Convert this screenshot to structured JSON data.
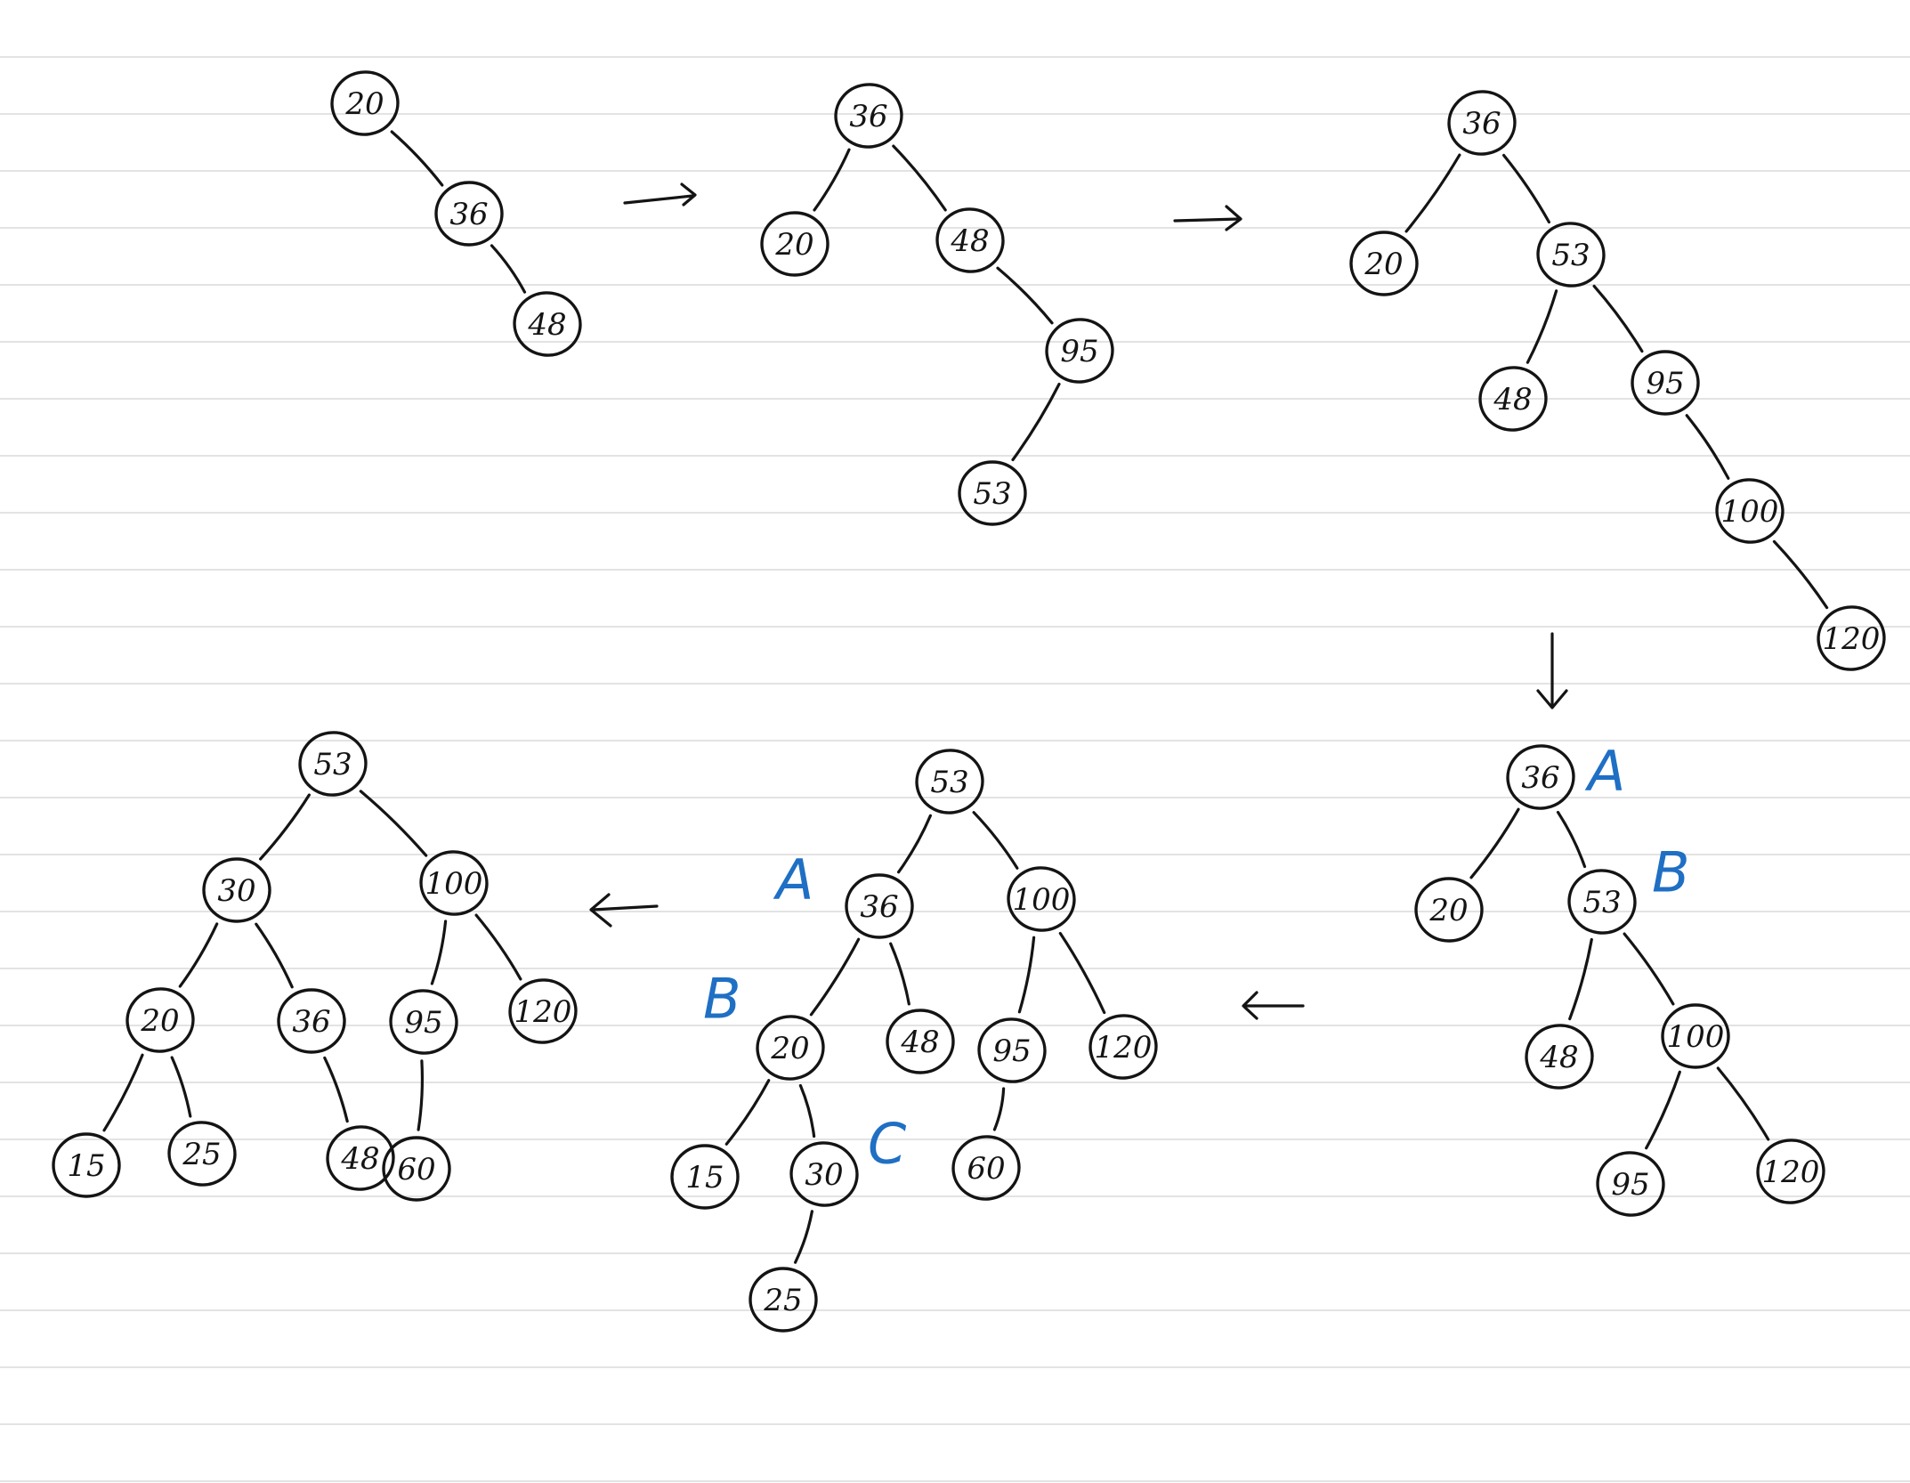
{
  "steps": [
    {
      "id": "step1",
      "nodes": [
        {
          "id": "n20",
          "label": "20"
        },
        {
          "id": "n36",
          "label": "36"
        },
        {
          "id": "n48",
          "label": "48"
        }
      ],
      "edges": [
        [
          "n20",
          "n36"
        ],
        [
          "n36",
          "n48"
        ]
      ]
    },
    {
      "id": "step2",
      "nodes": [
        {
          "id": "n36",
          "label": "36"
        },
        {
          "id": "n20",
          "label": "20"
        },
        {
          "id": "n48",
          "label": "48"
        },
        {
          "id": "n95",
          "label": "95"
        },
        {
          "id": "n53",
          "label": "53"
        }
      ],
      "edges": [
        [
          "n36",
          "n20"
        ],
        [
          "n36",
          "n48"
        ],
        [
          "n48",
          "n95"
        ],
        [
          "n95",
          "n53"
        ]
      ]
    },
    {
      "id": "step3",
      "nodes": [
        {
          "id": "n36",
          "label": "36"
        },
        {
          "id": "n20",
          "label": "20"
        },
        {
          "id": "n53",
          "label": "53"
        },
        {
          "id": "n48",
          "label": "48"
        },
        {
          "id": "n95",
          "label": "95"
        },
        {
          "id": "n100",
          "label": "100"
        },
        {
          "id": "n120",
          "label": "120"
        }
      ],
      "edges": [
        [
          "n36",
          "n20"
        ],
        [
          "n36",
          "n53"
        ],
        [
          "n53",
          "n48"
        ],
        [
          "n53",
          "n95"
        ],
        [
          "n95",
          "n100"
        ],
        [
          "n100",
          "n120"
        ]
      ]
    },
    {
      "id": "step4",
      "nodes": [
        {
          "id": "n36",
          "label": "36"
        },
        {
          "id": "n20",
          "label": "20"
        },
        {
          "id": "n53",
          "label": "53"
        },
        {
          "id": "n48",
          "label": "48"
        },
        {
          "id": "n100",
          "label": "100"
        },
        {
          "id": "n95",
          "label": "95"
        },
        {
          "id": "n120",
          "label": "120"
        }
      ],
      "edges": [
        [
          "n36",
          "n20"
        ],
        [
          "n36",
          "n53"
        ],
        [
          "n53",
          "n48"
        ],
        [
          "n53",
          "n100"
        ],
        [
          "n100",
          "n95"
        ],
        [
          "n100",
          "n120"
        ]
      ],
      "annotations": [
        {
          "id": "a",
          "label": "A"
        },
        {
          "id": "b",
          "label": "B"
        }
      ]
    },
    {
      "id": "step5",
      "nodes": [
        {
          "id": "n53",
          "label": "53"
        },
        {
          "id": "n36",
          "label": "36"
        },
        {
          "id": "n100",
          "label": "100"
        },
        {
          "id": "n20",
          "label": "20"
        },
        {
          "id": "n48",
          "label": "48"
        },
        {
          "id": "n95",
          "label": "95"
        },
        {
          "id": "n120",
          "label": "120"
        },
        {
          "id": "n15",
          "label": "15"
        },
        {
          "id": "n30",
          "label": "30"
        },
        {
          "id": "n60",
          "label": "60"
        },
        {
          "id": "n25",
          "label": "25"
        }
      ],
      "edges": [
        [
          "n53",
          "n36"
        ],
        [
          "n53",
          "n100"
        ],
        [
          "n36",
          "n20"
        ],
        [
          "n36",
          "n48"
        ],
        [
          "n100",
          "n95"
        ],
        [
          "n100",
          "n120"
        ],
        [
          "n20",
          "n15"
        ],
        [
          "n20",
          "n30"
        ],
        [
          "n95",
          "n60"
        ],
        [
          "n30",
          "n25"
        ]
      ],
      "annotations": [
        {
          "id": "a",
          "label": "A"
        },
        {
          "id": "b",
          "label": "B"
        },
        {
          "id": "c",
          "label": "C"
        }
      ]
    },
    {
      "id": "step6",
      "nodes": [
        {
          "id": "n53",
          "label": "53"
        },
        {
          "id": "n30",
          "label": "30"
        },
        {
          "id": "n100",
          "label": "100"
        },
        {
          "id": "n20",
          "label": "20"
        },
        {
          "id": "n36",
          "label": "36"
        },
        {
          "id": "n95",
          "label": "95"
        },
        {
          "id": "n120",
          "label": "120"
        },
        {
          "id": "n15",
          "label": "15"
        },
        {
          "id": "n25",
          "label": "25"
        },
        {
          "id": "n48",
          "label": "48"
        },
        {
          "id": "n60",
          "label": "60"
        }
      ],
      "edges": [
        [
          "n53",
          "n30"
        ],
        [
          "n53",
          "n100"
        ],
        [
          "n30",
          "n20"
        ],
        [
          "n30",
          "n36"
        ],
        [
          "n100",
          "n95"
        ],
        [
          "n100",
          "n120"
        ],
        [
          "n20",
          "n15"
        ],
        [
          "n20",
          "n25"
        ],
        [
          "n36",
          "n48"
        ],
        [
          "n95",
          "n60"
        ]
      ]
    }
  ],
  "transitions": [
    {
      "from": "step1",
      "to": "step2",
      "direction": "right"
    },
    {
      "from": "step2",
      "to": "step3",
      "direction": "right"
    },
    {
      "from": "step3",
      "to": "step4",
      "direction": "down"
    },
    {
      "from": "step4",
      "to": "step5",
      "direction": "left"
    },
    {
      "from": "step5",
      "to": "step6",
      "direction": "left"
    }
  ],
  "colors": {
    "ink": "#141414",
    "annotation": "#1f6fc4",
    "ruled_line": "#e3e3e3"
  }
}
